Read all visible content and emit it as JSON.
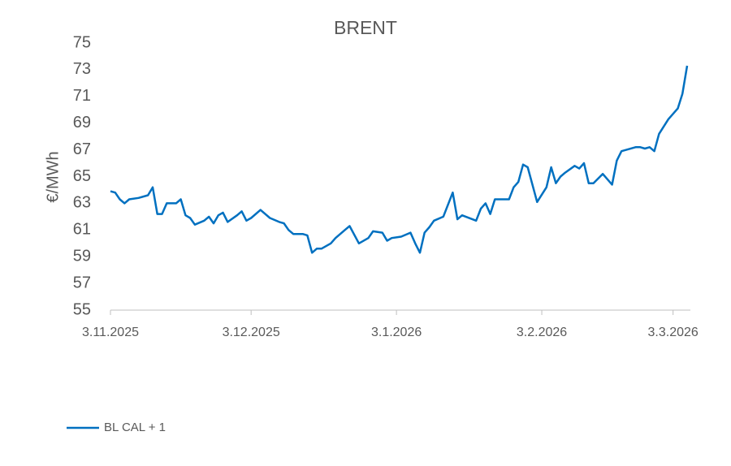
{
  "chart_data": {
    "type": "line",
    "title": "BRENT",
    "y_label": "€/MWh",
    "x": [
      "2025-11-03",
      "2025-11-04",
      "2025-11-05",
      "2025-11-06",
      "2025-11-07",
      "2025-11-09",
      "2025-11-11",
      "2025-11-12",
      "2025-11-13",
      "2025-11-14",
      "2025-11-15",
      "2025-11-16",
      "2025-11-17",
      "2025-11-18",
      "2025-11-19",
      "2025-11-20",
      "2025-11-21",
      "2025-11-23",
      "2025-11-24",
      "2025-11-25",
      "2025-11-26",
      "2025-11-27",
      "2025-11-28",
      "2025-11-30",
      "2025-12-01",
      "2025-12-02",
      "2025-12-03",
      "2025-12-05",
      "2025-12-07",
      "2025-12-09",
      "2025-12-10",
      "2025-12-11",
      "2025-12-12",
      "2025-12-14",
      "2025-12-15",
      "2025-12-16",
      "2025-12-17",
      "2025-12-18",
      "2025-12-20",
      "2025-12-21",
      "2025-12-23",
      "2025-12-24",
      "2025-12-26",
      "2025-12-28",
      "2025-12-29",
      "2025-12-31",
      "2026-01-01",
      "2026-01-02",
      "2026-01-04",
      "2026-01-06",
      "2026-01-07",
      "2026-01-08",
      "2026-01-09",
      "2026-01-10",
      "2026-01-11",
      "2026-01-13",
      "2026-01-15",
      "2026-01-16",
      "2026-01-17",
      "2026-01-20",
      "2026-01-21",
      "2026-01-22",
      "2026-01-23",
      "2026-01-24",
      "2026-01-27",
      "2026-01-28",
      "2026-01-29",
      "2026-01-30",
      "2026-01-31",
      "2026-02-02",
      "2026-02-04",
      "2026-02-05",
      "2026-02-06",
      "2026-02-07",
      "2026-02-08",
      "2026-02-10",
      "2026-02-11",
      "2026-02-12",
      "2026-02-13",
      "2026-02-14",
      "2026-02-16",
      "2026-02-18",
      "2026-02-19",
      "2026-02-20",
      "2026-02-21",
      "2026-02-23",
      "2026-02-24",
      "2026-02-25",
      "2026-02-26",
      "2026-02-27",
      "2026-02-28",
      "2026-03-02",
      "2026-03-04",
      "2026-03-05",
      "2026-03-06"
    ],
    "series": [
      {
        "name": "BL CAL + 1",
        "color": "#0070c0",
        "values": [
          63.9,
          63.8,
          63.3,
          63.0,
          63.3,
          63.4,
          63.6,
          64.2,
          62.2,
          62.2,
          63.0,
          63.0,
          63.0,
          63.3,
          62.1,
          61.9,
          61.4,
          61.7,
          62.0,
          61.5,
          62.1,
          62.3,
          61.6,
          62.1,
          62.4,
          61.7,
          61.9,
          62.5,
          61.9,
          61.6,
          61.5,
          61.0,
          60.7,
          60.7,
          60.6,
          59.3,
          59.6,
          59.6,
          60.0,
          60.4,
          61.0,
          61.3,
          60.0,
          60.4,
          60.9,
          60.8,
          60.2,
          60.4,
          60.5,
          60.8,
          60.0,
          59.3,
          60.8,
          61.2,
          61.7,
          62.0,
          63.8,
          61.8,
          62.1,
          61.7,
          62.6,
          63.0,
          62.2,
          63.3,
          63.3,
          64.2,
          64.6,
          65.9,
          65.7,
          63.1,
          64.2,
          65.7,
          64.5,
          65.0,
          65.3,
          65.8,
          65.6,
          66.0,
          64.5,
          64.5,
          65.2,
          64.4,
          66.2,
          66.9,
          67.0,
          67.2,
          67.2,
          67.1,
          67.2,
          66.9,
          68.2,
          69.3,
          70.1,
          71.2,
          73.3
        ]
      }
    ],
    "xlim": [
      "2025-11-03",
      "2026-03-06"
    ],
    "xticks": [
      {
        "value": "2025-11-03",
        "label": "3.11.2025"
      },
      {
        "value": "2025-12-03",
        "label": "3.12.2025"
      },
      {
        "value": "2026-01-03",
        "label": "3.1.2026"
      },
      {
        "value": "2026-02-03",
        "label": "3.2.2026"
      },
      {
        "value": "2026-03-03",
        "label": "3.3.2026"
      }
    ],
    "ylim": [
      55,
      75
    ],
    "yticks": [
      55,
      57,
      59,
      61,
      63,
      65,
      67,
      69,
      71,
      73,
      75
    ],
    "grid": false
  }
}
